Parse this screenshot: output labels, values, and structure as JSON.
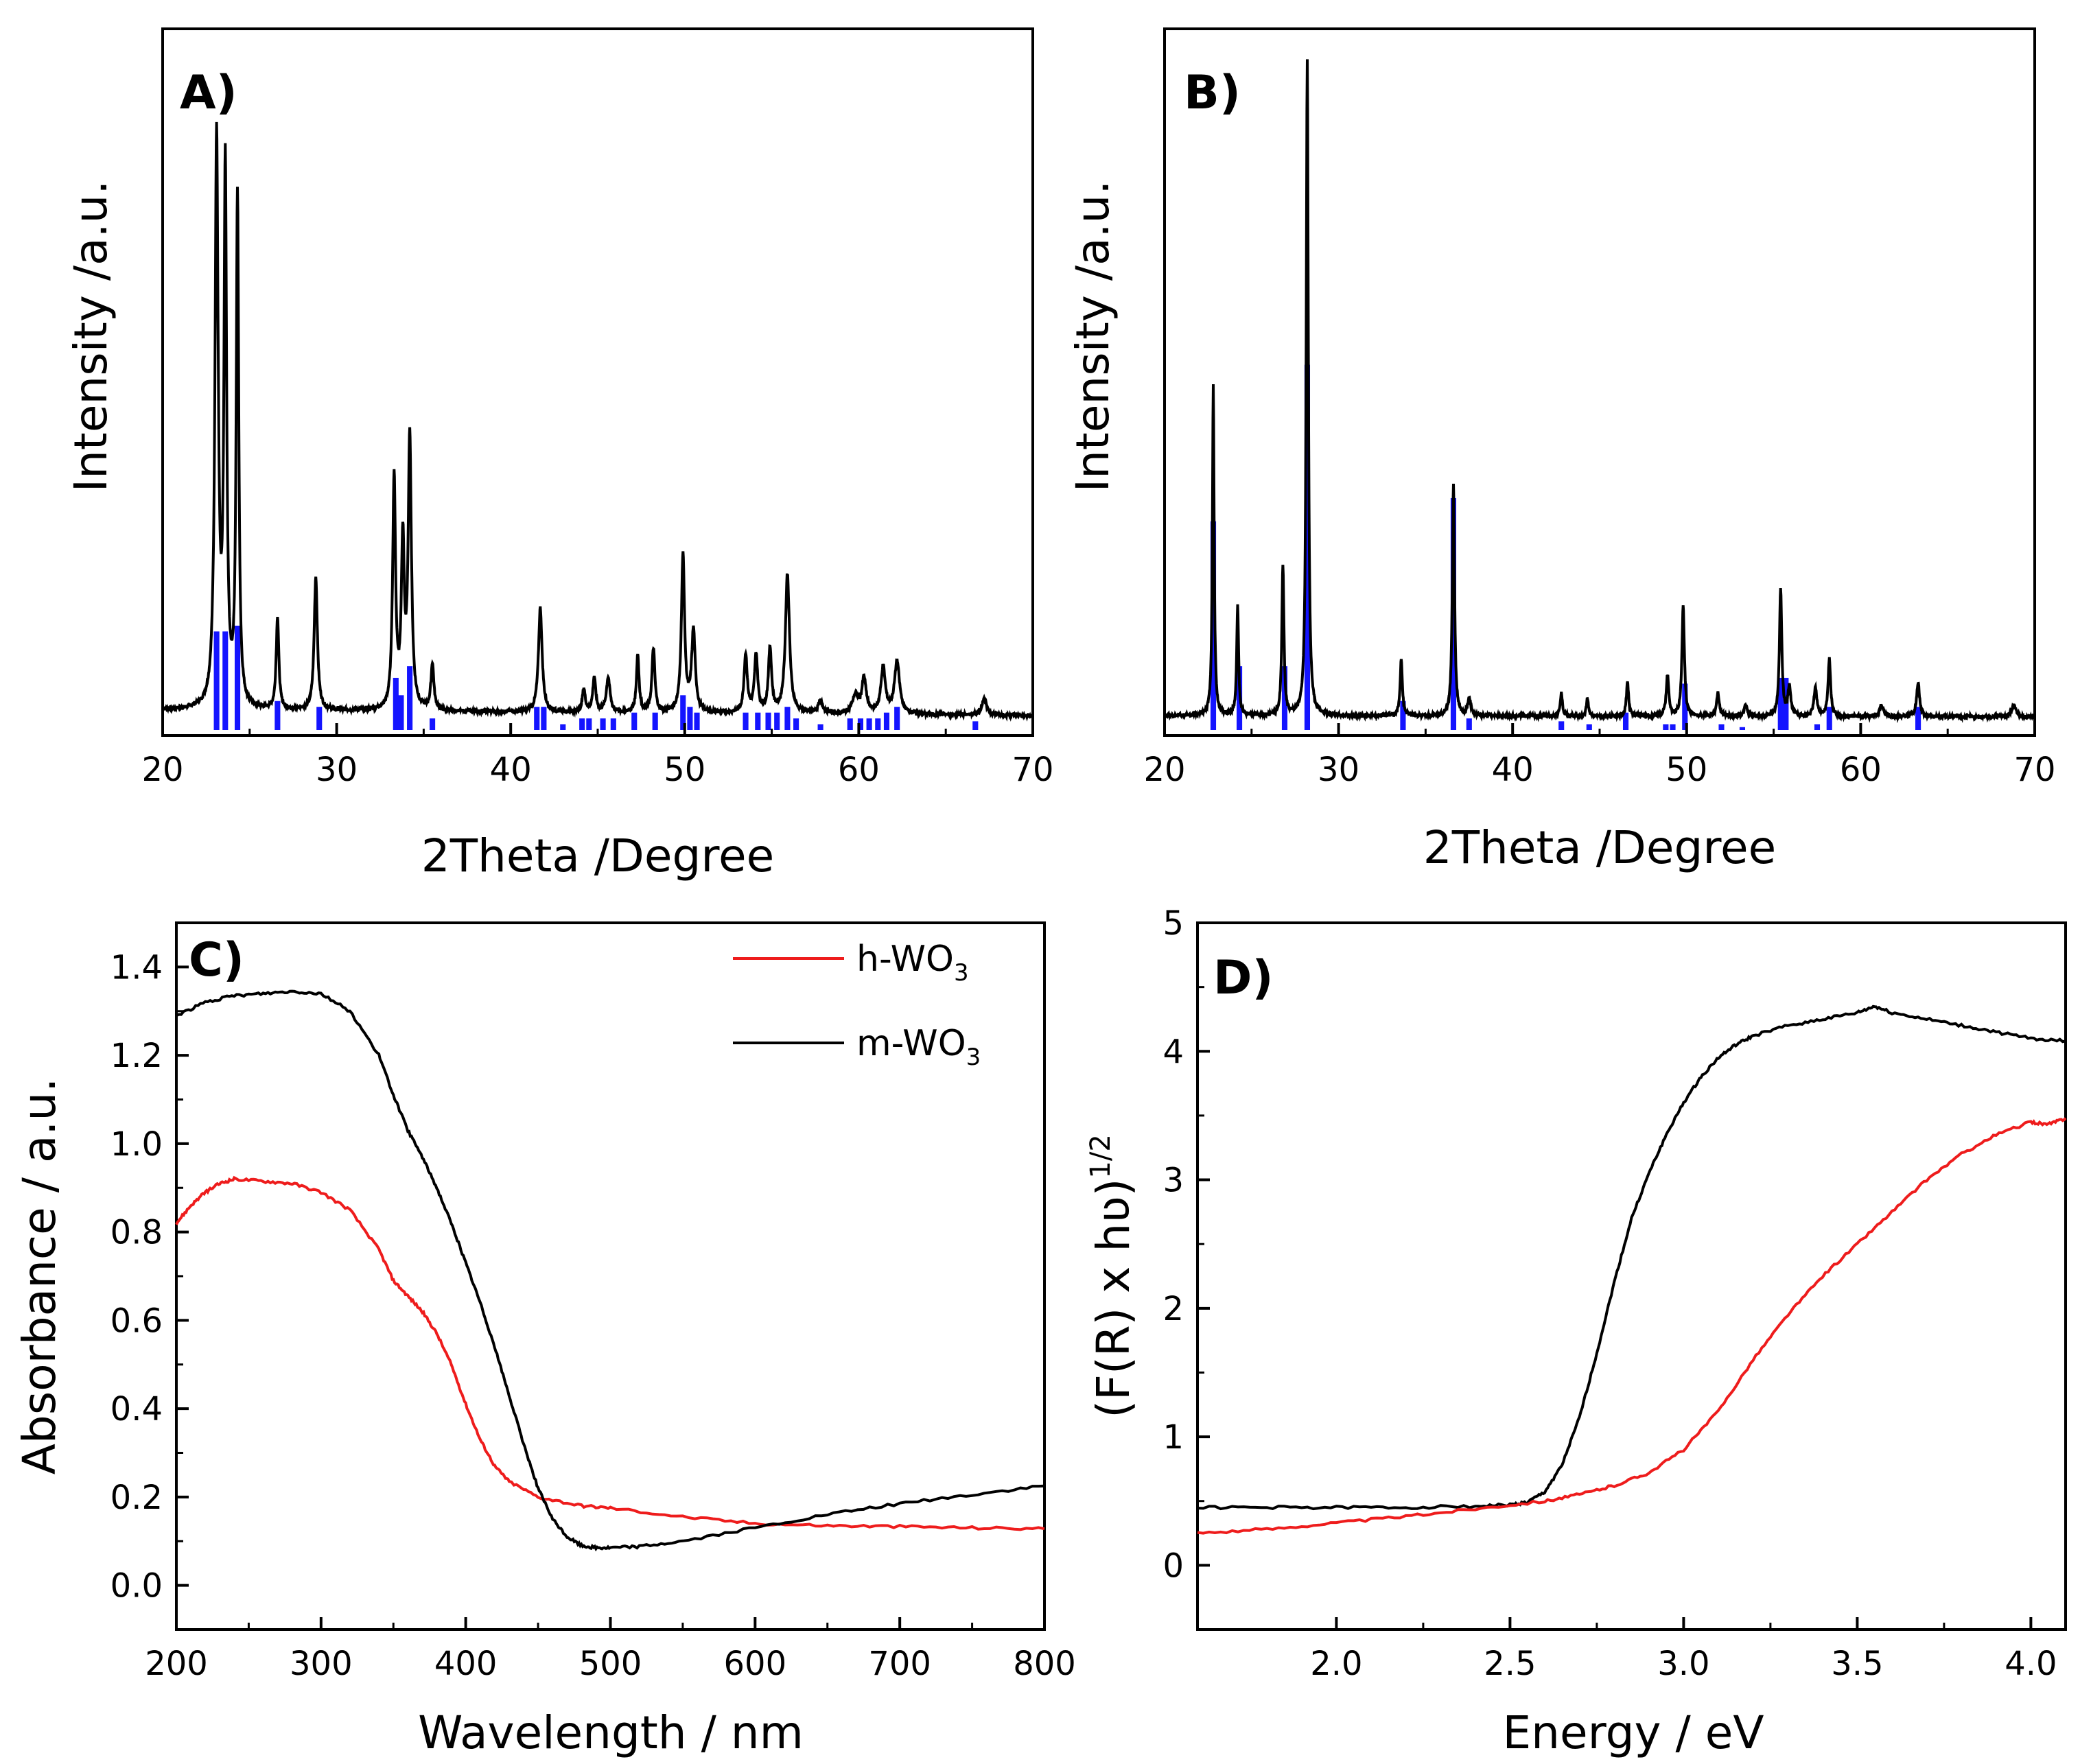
{
  "figure": {
    "panels": [
      "A)",
      "B)",
      "C)",
      "D)"
    ]
  },
  "chart_data": [
    {
      "panel": "A)",
      "type": "line",
      "xlabel": "2Theta /Degree",
      "ylabel": "Intensity /a.u.",
      "xlim": [
        20,
        70
      ],
      "ylim": [
        0,
        1.2
      ],
      "xticks": [
        20,
        30,
        40,
        50,
        60,
        70
      ],
      "xtick_labels": [
        "20",
        "30",
        "40",
        "50",
        "60",
        "70"
      ],
      "yticks": [],
      "ytick_labels": [],
      "baseline": 0.035,
      "baseline_slope": -0.0002,
      "peaks": [
        [
          23.1,
          0.98,
          0.22
        ],
        [
          23.6,
          0.92,
          0.18
        ],
        [
          24.3,
          0.88,
          0.17
        ],
        [
          26.6,
          0.16,
          0.18
        ],
        [
          28.8,
          0.23,
          0.22
        ],
        [
          33.3,
          0.4,
          0.2
        ],
        [
          33.8,
          0.28,
          0.2
        ],
        [
          34.2,
          0.47,
          0.22
        ],
        [
          35.5,
          0.08,
          0.2
        ],
        [
          41.7,
          0.18,
          0.25
        ],
        [
          44.2,
          0.04,
          0.2
        ],
        [
          44.8,
          0.06,
          0.2
        ],
        [
          45.6,
          0.06,
          0.25
        ],
        [
          47.3,
          0.1,
          0.18
        ],
        [
          48.2,
          0.11,
          0.2
        ],
        [
          49.9,
          0.27,
          0.22
        ],
        [
          50.5,
          0.14,
          0.25
        ],
        [
          53.5,
          0.1,
          0.22
        ],
        [
          54.1,
          0.1,
          0.22
        ],
        [
          54.9,
          0.11,
          0.22
        ],
        [
          55.9,
          0.24,
          0.28
        ],
        [
          57.8,
          0.02,
          0.35
        ],
        [
          59.8,
          0.03,
          0.4
        ],
        [
          60.3,
          0.06,
          0.3
        ],
        [
          61.4,
          0.08,
          0.3
        ],
        [
          62.2,
          0.09,
          0.35
        ],
        [
          67.2,
          0.03,
          0.3
        ]
      ],
      "reference_bars": {
        "color": "#1414ff",
        "x": [
          23.1,
          23.6,
          24.3,
          26.6,
          29.0,
          33.4,
          33.7,
          34.2,
          35.5,
          41.5,
          41.9,
          43.0,
          44.1,
          44.5,
          45.3,
          45.9,
          47.1,
          48.3,
          49.9,
          50.3,
          50.7,
          53.5,
          54.2,
          54.8,
          55.3,
          55.9,
          56.4,
          57.8,
          59.5,
          60.1,
          60.6,
          61.1,
          61.6,
          62.2,
          66.7
        ],
        "y": [
          0.17,
          0.17,
          0.18,
          0.05,
          0.04,
          0.09,
          0.06,
          0.11,
          0.02,
          0.04,
          0.04,
          0.01,
          0.02,
          0.02,
          0.02,
          0.02,
          0.03,
          0.03,
          0.06,
          0.04,
          0.03,
          0.03,
          0.03,
          0.03,
          0.03,
          0.04,
          0.02,
          0.01,
          0.02,
          0.02,
          0.02,
          0.02,
          0.03,
          0.04,
          0.015
        ]
      }
    },
    {
      "panel": "B)",
      "type": "line",
      "xlabel": "2Theta /Degree",
      "ylabel": "Intensity /a.u.",
      "xlim": [
        20,
        70
      ],
      "ylim": [
        0,
        1.2
      ],
      "xticks": [
        20,
        30,
        40,
        50,
        60,
        70
      ],
      "xtick_labels": [
        "20",
        "30",
        "40",
        "50",
        "60",
        "70"
      ],
      "yticks": [],
      "ytick_labels": [],
      "baseline": 0.025,
      "baseline_slope": -5e-05,
      "peaks": [
        [
          22.8,
          0.57,
          0.12
        ],
        [
          24.2,
          0.19,
          0.13
        ],
        [
          26.8,
          0.26,
          0.14
        ],
        [
          28.2,
          1.13,
          0.14
        ],
        [
          33.6,
          0.1,
          0.15
        ],
        [
          36.6,
          0.4,
          0.15
        ],
        [
          37.5,
          0.03,
          0.2
        ],
        [
          42.8,
          0.04,
          0.15
        ],
        [
          44.3,
          0.03,
          0.15
        ],
        [
          46.6,
          0.06,
          0.15
        ],
        [
          48.9,
          0.07,
          0.18
        ],
        [
          49.8,
          0.19,
          0.17
        ],
        [
          51.8,
          0.04,
          0.18
        ],
        [
          53.4,
          0.02,
          0.2
        ],
        [
          55.4,
          0.22,
          0.16
        ],
        [
          55.9,
          0.05,
          0.2
        ],
        [
          57.4,
          0.05,
          0.2
        ],
        [
          58.2,
          0.1,
          0.17
        ],
        [
          61.2,
          0.02,
          0.25
        ],
        [
          63.3,
          0.06,
          0.2
        ],
        [
          68.8,
          0.02,
          0.3
        ]
      ],
      "reference_bars": {
        "color": "#1414ff",
        "x": [
          22.8,
          24.3,
          26.9,
          28.2,
          33.7,
          36.6,
          37.5,
          42.8,
          44.4,
          46.5,
          48.8,
          49.2,
          49.9,
          52.0,
          53.2,
          55.4,
          55.7,
          57.5,
          58.2,
          63.3
        ],
        "y": [
          0.36,
          0.11,
          0.11,
          0.63,
          0.05,
          0.4,
          0.02,
          0.015,
          0.01,
          0.03,
          0.01,
          0.01,
          0.08,
          0.01,
          0.005,
          0.09,
          0.09,
          0.01,
          0.04,
          0.04
        ]
      }
    },
    {
      "panel": "C)",
      "type": "line",
      "xlabel": "Wavelength / nm",
      "ylabel": "Absorbance / a.u.",
      "xlim": [
        200,
        800
      ],
      "ylim": [
        -0.1,
        1.5
      ],
      "xticks": [
        200,
        300,
        400,
        500,
        600,
        700,
        800
      ],
      "xtick_labels": [
        "200",
        "300",
        "400",
        "500",
        "600",
        "700",
        "800"
      ],
      "yticks": [
        0.0,
        0.2,
        0.4,
        0.6,
        0.8,
        1.0,
        1.2,
        1.4
      ],
      "ytick_labels": [
        "0.0",
        "0.2",
        "0.4",
        "0.6",
        "0.8",
        "1.0",
        "1.2",
        "1.4"
      ],
      "legend": {
        "position": "top-right"
      },
      "series": [
        {
          "name": "h-WO",
          "subscript": "3",
          "color": "#ee1c1c",
          "x": [
            200,
            210,
            220,
            230,
            240,
            260,
            280,
            300,
            320,
            340,
            350,
            360,
            370,
            380,
            390,
            400,
            410,
            420,
            430,
            450,
            480,
            500,
            550,
            600,
            650,
            700,
            750,
            800
          ],
          "y": [
            0.82,
            0.86,
            0.89,
            0.91,
            0.92,
            0.915,
            0.91,
            0.89,
            0.85,
            0.76,
            0.69,
            0.655,
            0.62,
            0.57,
            0.5,
            0.41,
            0.33,
            0.27,
            0.235,
            0.2,
            0.18,
            0.175,
            0.155,
            0.14,
            0.135,
            0.133,
            0.13,
            0.128
          ]
        },
        {
          "name": "m-WO",
          "subscript": "3",
          "color": "#000000",
          "x": [
            200,
            220,
            240,
            260,
            280,
            300,
            320,
            340,
            350,
            360,
            370,
            380,
            390,
            400,
            410,
            420,
            430,
            440,
            450,
            460,
            470,
            480,
            490,
            500,
            520,
            550,
            600,
            650,
            700,
            750,
            800
          ],
          "y": [
            1.29,
            1.32,
            1.335,
            1.34,
            1.345,
            1.34,
            1.3,
            1.2,
            1.11,
            1.03,
            0.97,
            0.9,
            0.82,
            0.73,
            0.64,
            0.54,
            0.43,
            0.32,
            0.22,
            0.15,
            0.11,
            0.09,
            0.085,
            0.085,
            0.088,
            0.1,
            0.13,
            0.16,
            0.185,
            0.205,
            0.225
          ]
        }
      ]
    },
    {
      "panel": "D)",
      "type": "line",
      "xlabel": "Energy / eV",
      "ylabel": "(F(R) x hʋ)",
      "ylabel_superscript": "1/2",
      "xlim": [
        1.6,
        4.1
      ],
      "ylim": [
        -0.5,
        5
      ],
      "xticks": [
        2.0,
        2.5,
        3.0,
        3.5,
        4.0
      ],
      "xtick_labels": [
        "2.0",
        "2.5",
        "3.0",
        "3.5",
        "4.0"
      ],
      "yticks": [
        0,
        1,
        2,
        3,
        4,
        5
      ],
      "ytick_labels": [
        "0",
        "1",
        "2",
        "3",
        "4",
        "5"
      ],
      "series": [
        {
          "name": "",
          "color": "#000000",
          "x": [
            1.6,
            1.8,
            2.0,
            2.2,
            2.4,
            2.5,
            2.55,
            2.6,
            2.65,
            2.7,
            2.75,
            2.8,
            2.85,
            2.9,
            2.95,
            3.0,
            3.05,
            3.1,
            3.15,
            3.2,
            3.3,
            3.4,
            3.5,
            3.55,
            3.6,
            3.7,
            3.8,
            3.9,
            4.0,
            4.1
          ],
          "y": [
            0.45,
            0.45,
            0.45,
            0.45,
            0.46,
            0.47,
            0.49,
            0.57,
            0.78,
            1.15,
            1.65,
            2.2,
            2.7,
            3.05,
            3.35,
            3.6,
            3.8,
            3.95,
            4.05,
            4.12,
            4.2,
            4.25,
            4.3,
            4.35,
            4.3,
            4.25,
            4.2,
            4.15,
            4.1,
            4.08
          ]
        },
        {
          "name": "",
          "color": "#ee1c1c",
          "x": [
            1.6,
            1.8,
            2.0,
            2.2,
            2.4,
            2.6,
            2.7,
            2.8,
            2.9,
            3.0,
            3.1,
            3.2,
            3.3,
            3.4,
            3.5,
            3.6,
            3.7,
            3.8,
            3.9,
            4.0,
            4.05,
            4.1
          ],
          "y": [
            0.25,
            0.28,
            0.33,
            0.38,
            0.44,
            0.5,
            0.55,
            0.62,
            0.72,
            0.9,
            1.2,
            1.6,
            1.95,
            2.25,
            2.5,
            2.75,
            3.0,
            3.2,
            3.35,
            3.45,
            3.43,
            3.48
          ]
        }
      ]
    }
  ]
}
